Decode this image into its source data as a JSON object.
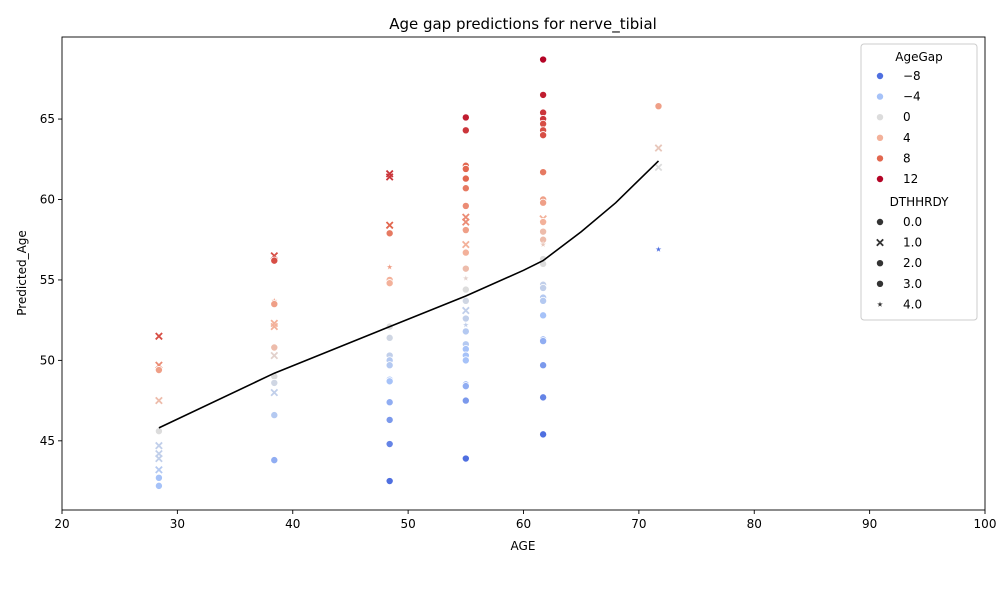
{
  "chart_data": {
    "type": "scatter",
    "title": "Age gap predictions for nerve_tibial",
    "xlabel": "AGE",
    "ylabel": "Predicted_Age",
    "xlim": [
      20,
      100
    ],
    "ylim": [
      40.7,
      70.1
    ],
    "xticks": [
      20,
      30,
      40,
      50,
      60,
      70,
      80,
      90,
      100
    ],
    "yticks": [
      45,
      50,
      55,
      60,
      65
    ],
    "grid": false,
    "legend_position": "top-right",
    "hue_legend": {
      "title": "AgeGap",
      "entries": [
        {
          "label": "−8",
          "value": -8
        },
        {
          "label": "−4",
          "value": -4
        },
        {
          "label": "0",
          "value": 0
        },
        {
          "label": "4",
          "value": 4
        },
        {
          "label": "8",
          "value": 8
        },
        {
          "label": "12",
          "value": 12
        }
      ]
    },
    "style_legend": {
      "title": "DTHHRDY",
      "entries": [
        {
          "label": "0.0",
          "marker": "circle"
        },
        {
          "label": "1.0",
          "marker": "x"
        },
        {
          "label": "2.0",
          "marker": "circle"
        },
        {
          "label": "3.0",
          "marker": "circle"
        },
        {
          "label": "4.0",
          "marker": "star"
        }
      ]
    },
    "trend_line": {
      "color": "#000000",
      "x": [
        28.4,
        38.4,
        48.4,
        55.0,
        60.0,
        61.7,
        65.0,
        68.0,
        71.7
      ],
      "y": [
        45.8,
        49.2,
        52.1,
        54.0,
        55.6,
        56.2,
        58.0,
        59.8,
        62.4
      ]
    },
    "series": [
      {
        "x": 28.4,
        "y": 51.5,
        "gap": 9,
        "m": "x"
      },
      {
        "x": 28.4,
        "y": 49.7,
        "gap": 6,
        "m": "x"
      },
      {
        "x": 28.4,
        "y": 49.4,
        "gap": 5,
        "m": "circle"
      },
      {
        "x": 28.4,
        "y": 47.5,
        "gap": 3,
        "m": "x"
      },
      {
        "x": 28.4,
        "y": 45.6,
        "gap": 0,
        "m": "circle"
      },
      {
        "x": 28.4,
        "y": 44.7,
        "gap": -2,
        "m": "x"
      },
      {
        "x": 28.4,
        "y": 44.2,
        "gap": -2,
        "m": "x"
      },
      {
        "x": 28.4,
        "y": 43.9,
        "gap": -2,
        "m": "x"
      },
      {
        "x": 28.4,
        "y": 43.2,
        "gap": -3,
        "m": "x"
      },
      {
        "x": 28.4,
        "y": 42.7,
        "gap": -4,
        "m": "circle"
      },
      {
        "x": 28.4,
        "y": 42.2,
        "gap": -4,
        "m": "circle"
      },
      {
        "x": 38.4,
        "y": 56.5,
        "gap": 9,
        "m": "x"
      },
      {
        "x": 38.4,
        "y": 56.2,
        "gap": 9,
        "m": "circle"
      },
      {
        "x": 38.4,
        "y": 53.7,
        "gap": 5,
        "m": "star"
      },
      {
        "x": 38.4,
        "y": 53.5,
        "gap": 5,
        "m": "circle"
      },
      {
        "x": 38.4,
        "y": 52.3,
        "gap": 4,
        "m": "x"
      },
      {
        "x": 38.4,
        "y": 52.1,
        "gap": 4,
        "m": "x"
      },
      {
        "x": 38.4,
        "y": 50.8,
        "gap": 3,
        "m": "circle"
      },
      {
        "x": 38.4,
        "y": 50.3,
        "gap": 1,
        "m": "x"
      },
      {
        "x": 38.4,
        "y": 49.0,
        "gap": 0,
        "m": "circle"
      },
      {
        "x": 38.4,
        "y": 48.6,
        "gap": -1,
        "m": "circle"
      },
      {
        "x": 38.4,
        "y": 48.0,
        "gap": -2,
        "m": "x"
      },
      {
        "x": 38.4,
        "y": 46.6,
        "gap": -3,
        "m": "circle"
      },
      {
        "x": 38.4,
        "y": 43.8,
        "gap": -5,
        "m": "circle"
      },
      {
        "x": 48.4,
        "y": 61.6,
        "gap": 10,
        "m": "x"
      },
      {
        "x": 48.4,
        "y": 61.4,
        "gap": 10,
        "m": "x"
      },
      {
        "x": 48.4,
        "y": 58.4,
        "gap": 8,
        "m": "x"
      },
      {
        "x": 48.4,
        "y": 57.9,
        "gap": 7,
        "m": "circle"
      },
      {
        "x": 48.4,
        "y": 55.8,
        "gap": 5,
        "m": "star"
      },
      {
        "x": 48.4,
        "y": 55.0,
        "gap": 4,
        "m": "circle"
      },
      {
        "x": 48.4,
        "y": 54.8,
        "gap": 4,
        "m": "circle"
      },
      {
        "x": 48.4,
        "y": 52.1,
        "gap": 0,
        "m": "circle"
      },
      {
        "x": 48.4,
        "y": 51.4,
        "gap": -1,
        "m": "circle"
      },
      {
        "x": 48.4,
        "y": 50.3,
        "gap": -2,
        "m": "circle"
      },
      {
        "x": 48.4,
        "y": 50.0,
        "gap": -3,
        "m": "circle"
      },
      {
        "x": 48.4,
        "y": 49.7,
        "gap": -3,
        "m": "circle"
      },
      {
        "x": 48.4,
        "y": 48.8,
        "gap": -4,
        "m": "circle"
      },
      {
        "x": 48.4,
        "y": 48.7,
        "gap": -4,
        "m": "circle"
      },
      {
        "x": 48.4,
        "y": 47.4,
        "gap": -5,
        "m": "circle"
      },
      {
        "x": 48.4,
        "y": 46.3,
        "gap": -6,
        "m": "circle"
      },
      {
        "x": 48.4,
        "y": 44.8,
        "gap": -7,
        "m": "circle"
      },
      {
        "x": 48.4,
        "y": 42.5,
        "gap": -9,
        "m": "circle"
      },
      {
        "x": 55.0,
        "y": 65.1,
        "gap": 11,
        "m": "circle"
      },
      {
        "x": 55.0,
        "y": 64.3,
        "gap": 10,
        "m": "circle"
      },
      {
        "x": 55.0,
        "y": 62.1,
        "gap": 8,
        "m": "circle"
      },
      {
        "x": 55.0,
        "y": 61.9,
        "gap": 8,
        "m": "circle"
      },
      {
        "x": 55.0,
        "y": 61.3,
        "gap": 8,
        "m": "circle"
      },
      {
        "x": 55.0,
        "y": 60.7,
        "gap": 7,
        "m": "circle"
      },
      {
        "x": 55.0,
        "y": 59.6,
        "gap": 6,
        "m": "circle"
      },
      {
        "x": 55.0,
        "y": 58.9,
        "gap": 6,
        "m": "x"
      },
      {
        "x": 55.0,
        "y": 58.6,
        "gap": 6,
        "m": "x"
      },
      {
        "x": 55.0,
        "y": 58.1,
        "gap": 5,
        "m": "circle"
      },
      {
        "x": 55.0,
        "y": 57.2,
        "gap": 4,
        "m": "x"
      },
      {
        "x": 55.0,
        "y": 56.7,
        "gap": 4,
        "m": "circle"
      },
      {
        "x": 55.0,
        "y": 55.7,
        "gap": 3,
        "m": "circle"
      },
      {
        "x": 55.0,
        "y": 55.1,
        "gap": 1,
        "m": "star"
      },
      {
        "x": 55.0,
        "y": 54.4,
        "gap": 0,
        "m": "circle"
      },
      {
        "x": 55.0,
        "y": 53.7,
        "gap": -1,
        "m": "circle"
      },
      {
        "x": 55.0,
        "y": 53.1,
        "gap": -2,
        "m": "x"
      },
      {
        "x": 55.0,
        "y": 52.6,
        "gap": -2,
        "m": "circle"
      },
      {
        "x": 55.0,
        "y": 52.2,
        "gap": -2,
        "m": "star"
      },
      {
        "x": 55.0,
        "y": 51.8,
        "gap": -3,
        "m": "circle"
      },
      {
        "x": 55.0,
        "y": 51.0,
        "gap": -3,
        "m": "circle"
      },
      {
        "x": 55.0,
        "y": 50.7,
        "gap": -4,
        "m": "circle"
      },
      {
        "x": 55.0,
        "y": 50.3,
        "gap": -4,
        "m": "circle"
      },
      {
        "x": 55.0,
        "y": 50.0,
        "gap": -4,
        "m": "circle"
      },
      {
        "x": 55.0,
        "y": 48.5,
        "gap": -5,
        "m": "circle"
      },
      {
        "x": 55.0,
        "y": 48.4,
        "gap": -5,
        "m": "circle"
      },
      {
        "x": 55.0,
        "y": 47.5,
        "gap": -6,
        "m": "circle"
      },
      {
        "x": 55.0,
        "y": 43.9,
        "gap": -9,
        "m": "circle"
      },
      {
        "x": 61.7,
        "y": 68.7,
        "gap": 13,
        "m": "circle"
      },
      {
        "x": 61.7,
        "y": 66.5,
        "gap": 11,
        "m": "circle"
      },
      {
        "x": 61.7,
        "y": 65.4,
        "gap": 10,
        "m": "circle"
      },
      {
        "x": 61.7,
        "y": 65.0,
        "gap": 10,
        "m": "circle"
      },
      {
        "x": 61.7,
        "y": 64.7,
        "gap": 9,
        "m": "circle"
      },
      {
        "x": 61.7,
        "y": 64.3,
        "gap": 9,
        "m": "circle"
      },
      {
        "x": 61.7,
        "y": 64.0,
        "gap": 9,
        "m": "circle"
      },
      {
        "x": 61.7,
        "y": 61.7,
        "gap": 7,
        "m": "circle"
      },
      {
        "x": 61.7,
        "y": 60.0,
        "gap": 5,
        "m": "circle"
      },
      {
        "x": 61.7,
        "y": 59.8,
        "gap": 5,
        "m": "circle"
      },
      {
        "x": 61.7,
        "y": 58.8,
        "gap": 4,
        "m": "x"
      },
      {
        "x": 61.7,
        "y": 58.6,
        "gap": 4,
        "m": "circle"
      },
      {
        "x": 61.7,
        "y": 58.0,
        "gap": 3,
        "m": "circle"
      },
      {
        "x": 61.7,
        "y": 57.5,
        "gap": 3,
        "m": "circle"
      },
      {
        "x": 61.7,
        "y": 57.2,
        "gap": 2,
        "m": "star"
      },
      {
        "x": 61.7,
        "y": 56.3,
        "gap": 0,
        "m": "circle"
      },
      {
        "x": 61.7,
        "y": 56.0,
        "gap": 0,
        "m": "circle"
      },
      {
        "x": 61.7,
        "y": 54.7,
        "gap": -2,
        "m": "circle"
      },
      {
        "x": 61.7,
        "y": 54.5,
        "gap": -2,
        "m": "circle"
      },
      {
        "x": 61.7,
        "y": 53.9,
        "gap": -3,
        "m": "circle"
      },
      {
        "x": 61.7,
        "y": 53.7,
        "gap": -3,
        "m": "circle"
      },
      {
        "x": 61.7,
        "y": 52.8,
        "gap": -4,
        "m": "circle"
      },
      {
        "x": 61.7,
        "y": 51.3,
        "gap": -5,
        "m": "circle"
      },
      {
        "x": 61.7,
        "y": 51.2,
        "gap": -5,
        "m": "circle"
      },
      {
        "x": 61.7,
        "y": 49.7,
        "gap": -6,
        "m": "circle"
      },
      {
        "x": 61.7,
        "y": 47.7,
        "gap": -7,
        "m": "circle"
      },
      {
        "x": 61.7,
        "y": 45.4,
        "gap": -9,
        "m": "circle"
      },
      {
        "x": 71.7,
        "y": 65.8,
        "gap": 5,
        "m": "circle"
      },
      {
        "x": 71.7,
        "y": 63.2,
        "gap": 2,
        "m": "x"
      },
      {
        "x": 71.7,
        "y": 62.0,
        "gap": 0,
        "m": "x"
      },
      {
        "x": 71.7,
        "y": 56.9,
        "gap": -8,
        "m": "star"
      }
    ],
    "colors": {
      "-8": "#4f6fe0",
      "-4": "#a6c2f8",
      "0": "#dcdcdc",
      "4": "#f3b19a",
      "8": "#e2674f",
      "12": "#b40426"
    }
  }
}
